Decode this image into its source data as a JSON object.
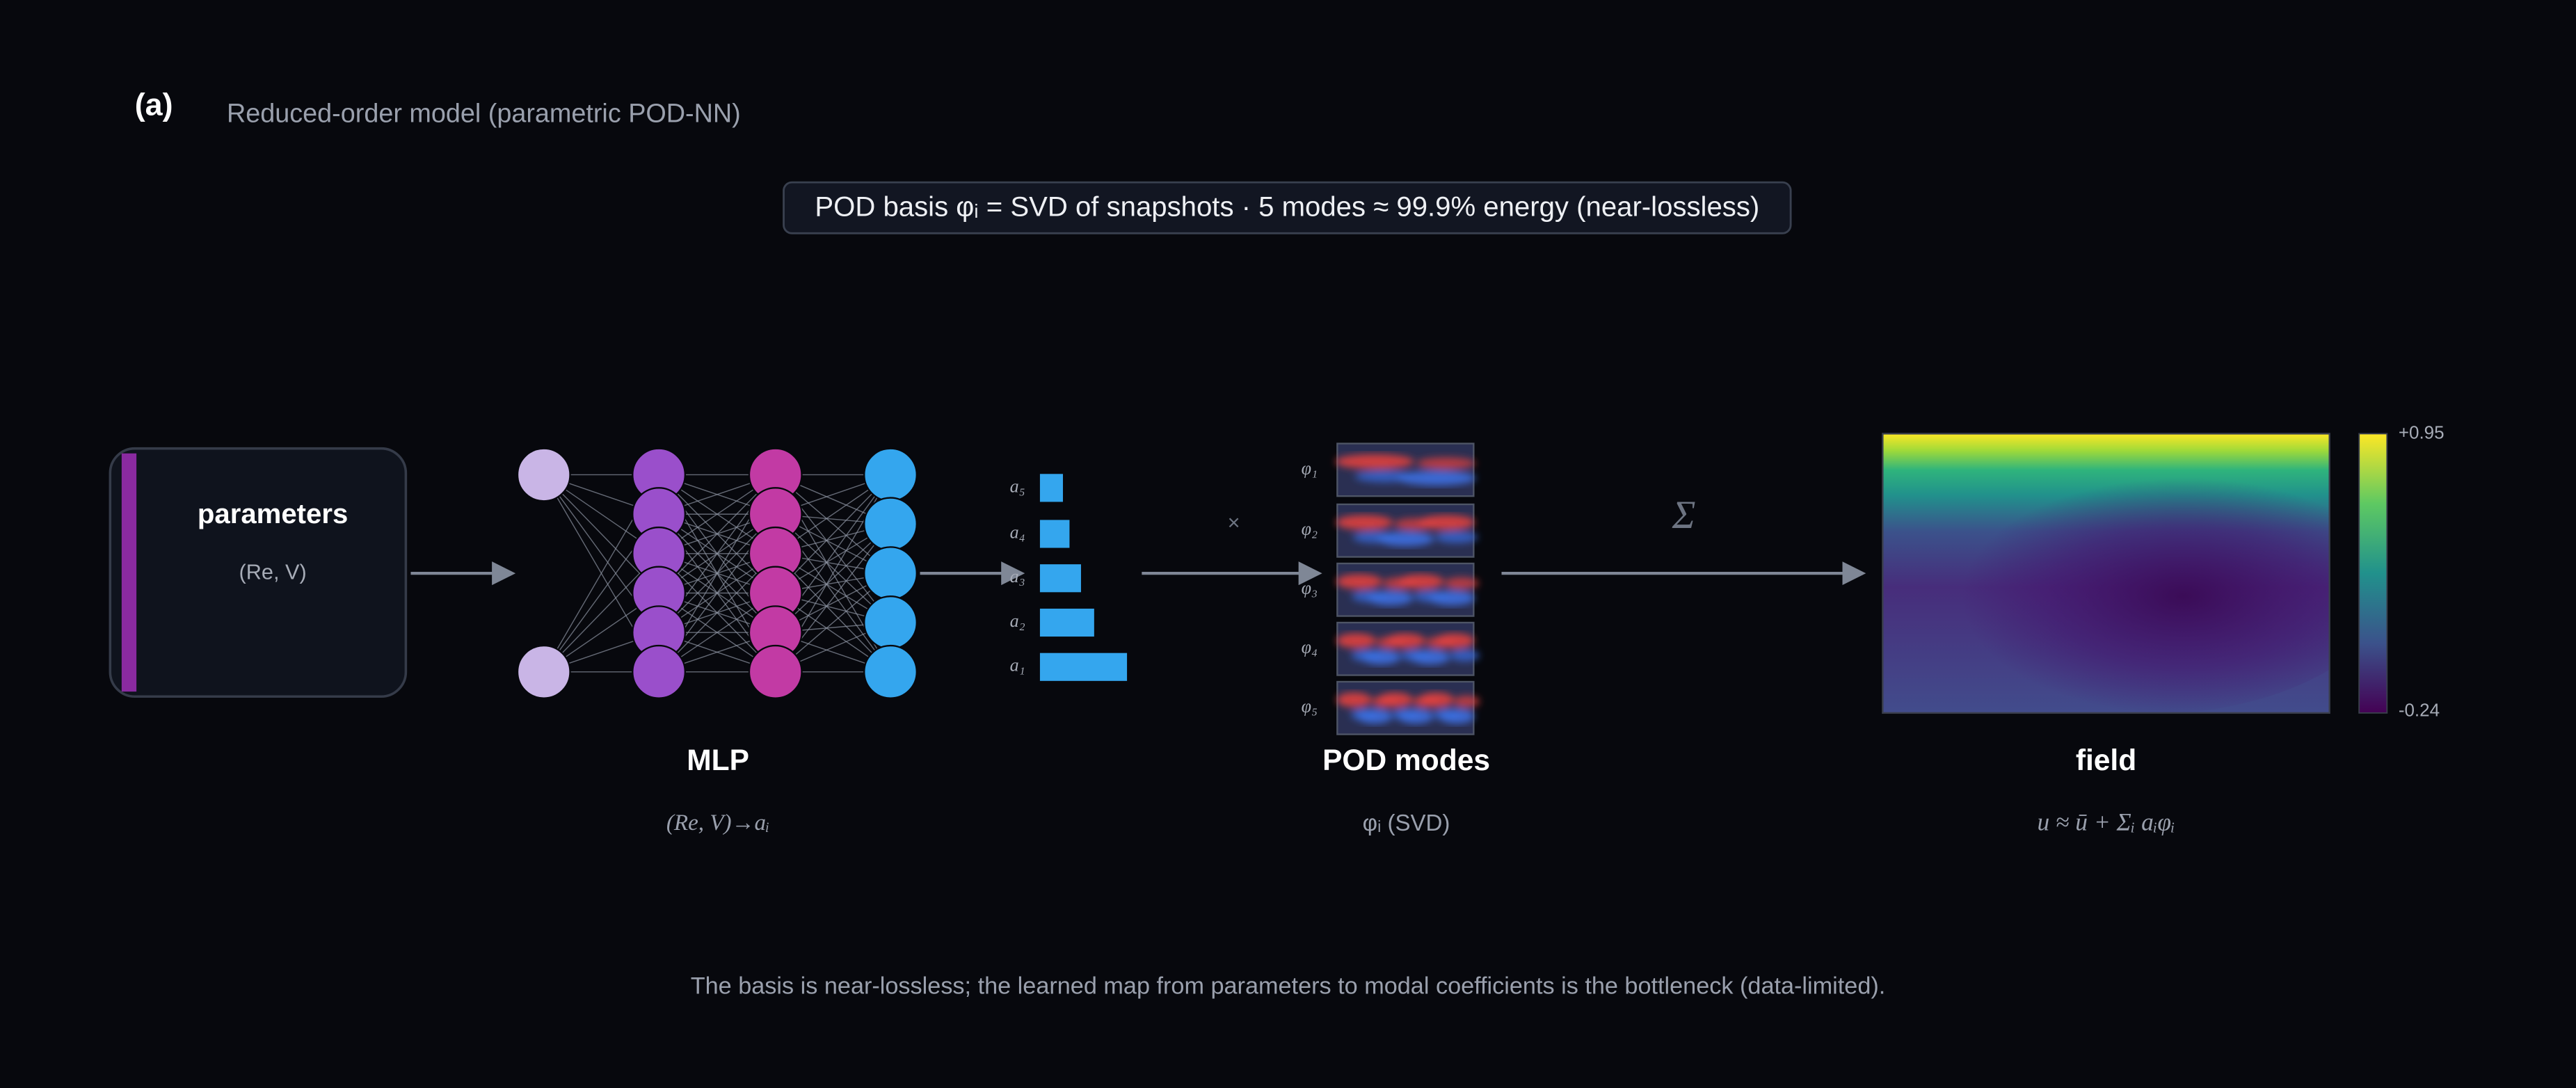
{
  "panel_label": "(a)",
  "title": "Reduced-order model (parametric POD-NN)",
  "banner": "POD basis φᵢ = SVD of snapshots · 5 modes ≈ 99.9% energy (near-lossless)",
  "input": {
    "title": "parameters",
    "subtitle": "(Re, V)"
  },
  "mlp": {
    "title": "MLP",
    "subtitle": "(Re, V)→aᵢ"
  },
  "coefficients": [
    "a₅",
    "a₄",
    "a₃",
    "a₂",
    "a₁"
  ],
  "multiply": "×",
  "modes": {
    "labels": [
      "φ₁",
      "φ₂",
      "φ₃",
      "φ₄",
      "φ₅"
    ],
    "title": "POD modes",
    "subtitle": "φᵢ (SVD)"
  },
  "sum": "Σ",
  "field": {
    "title": "field",
    "subtitle": "u ≈ ū + Σᵢ aᵢφᵢ",
    "colorbar": {
      "max_label": "+0.95",
      "min_label": "-0.24"
    }
  },
  "caption": "The basis is near-lossless; the learned map from parameters to modal coefficients is the bottleneck (data-limited)."
}
